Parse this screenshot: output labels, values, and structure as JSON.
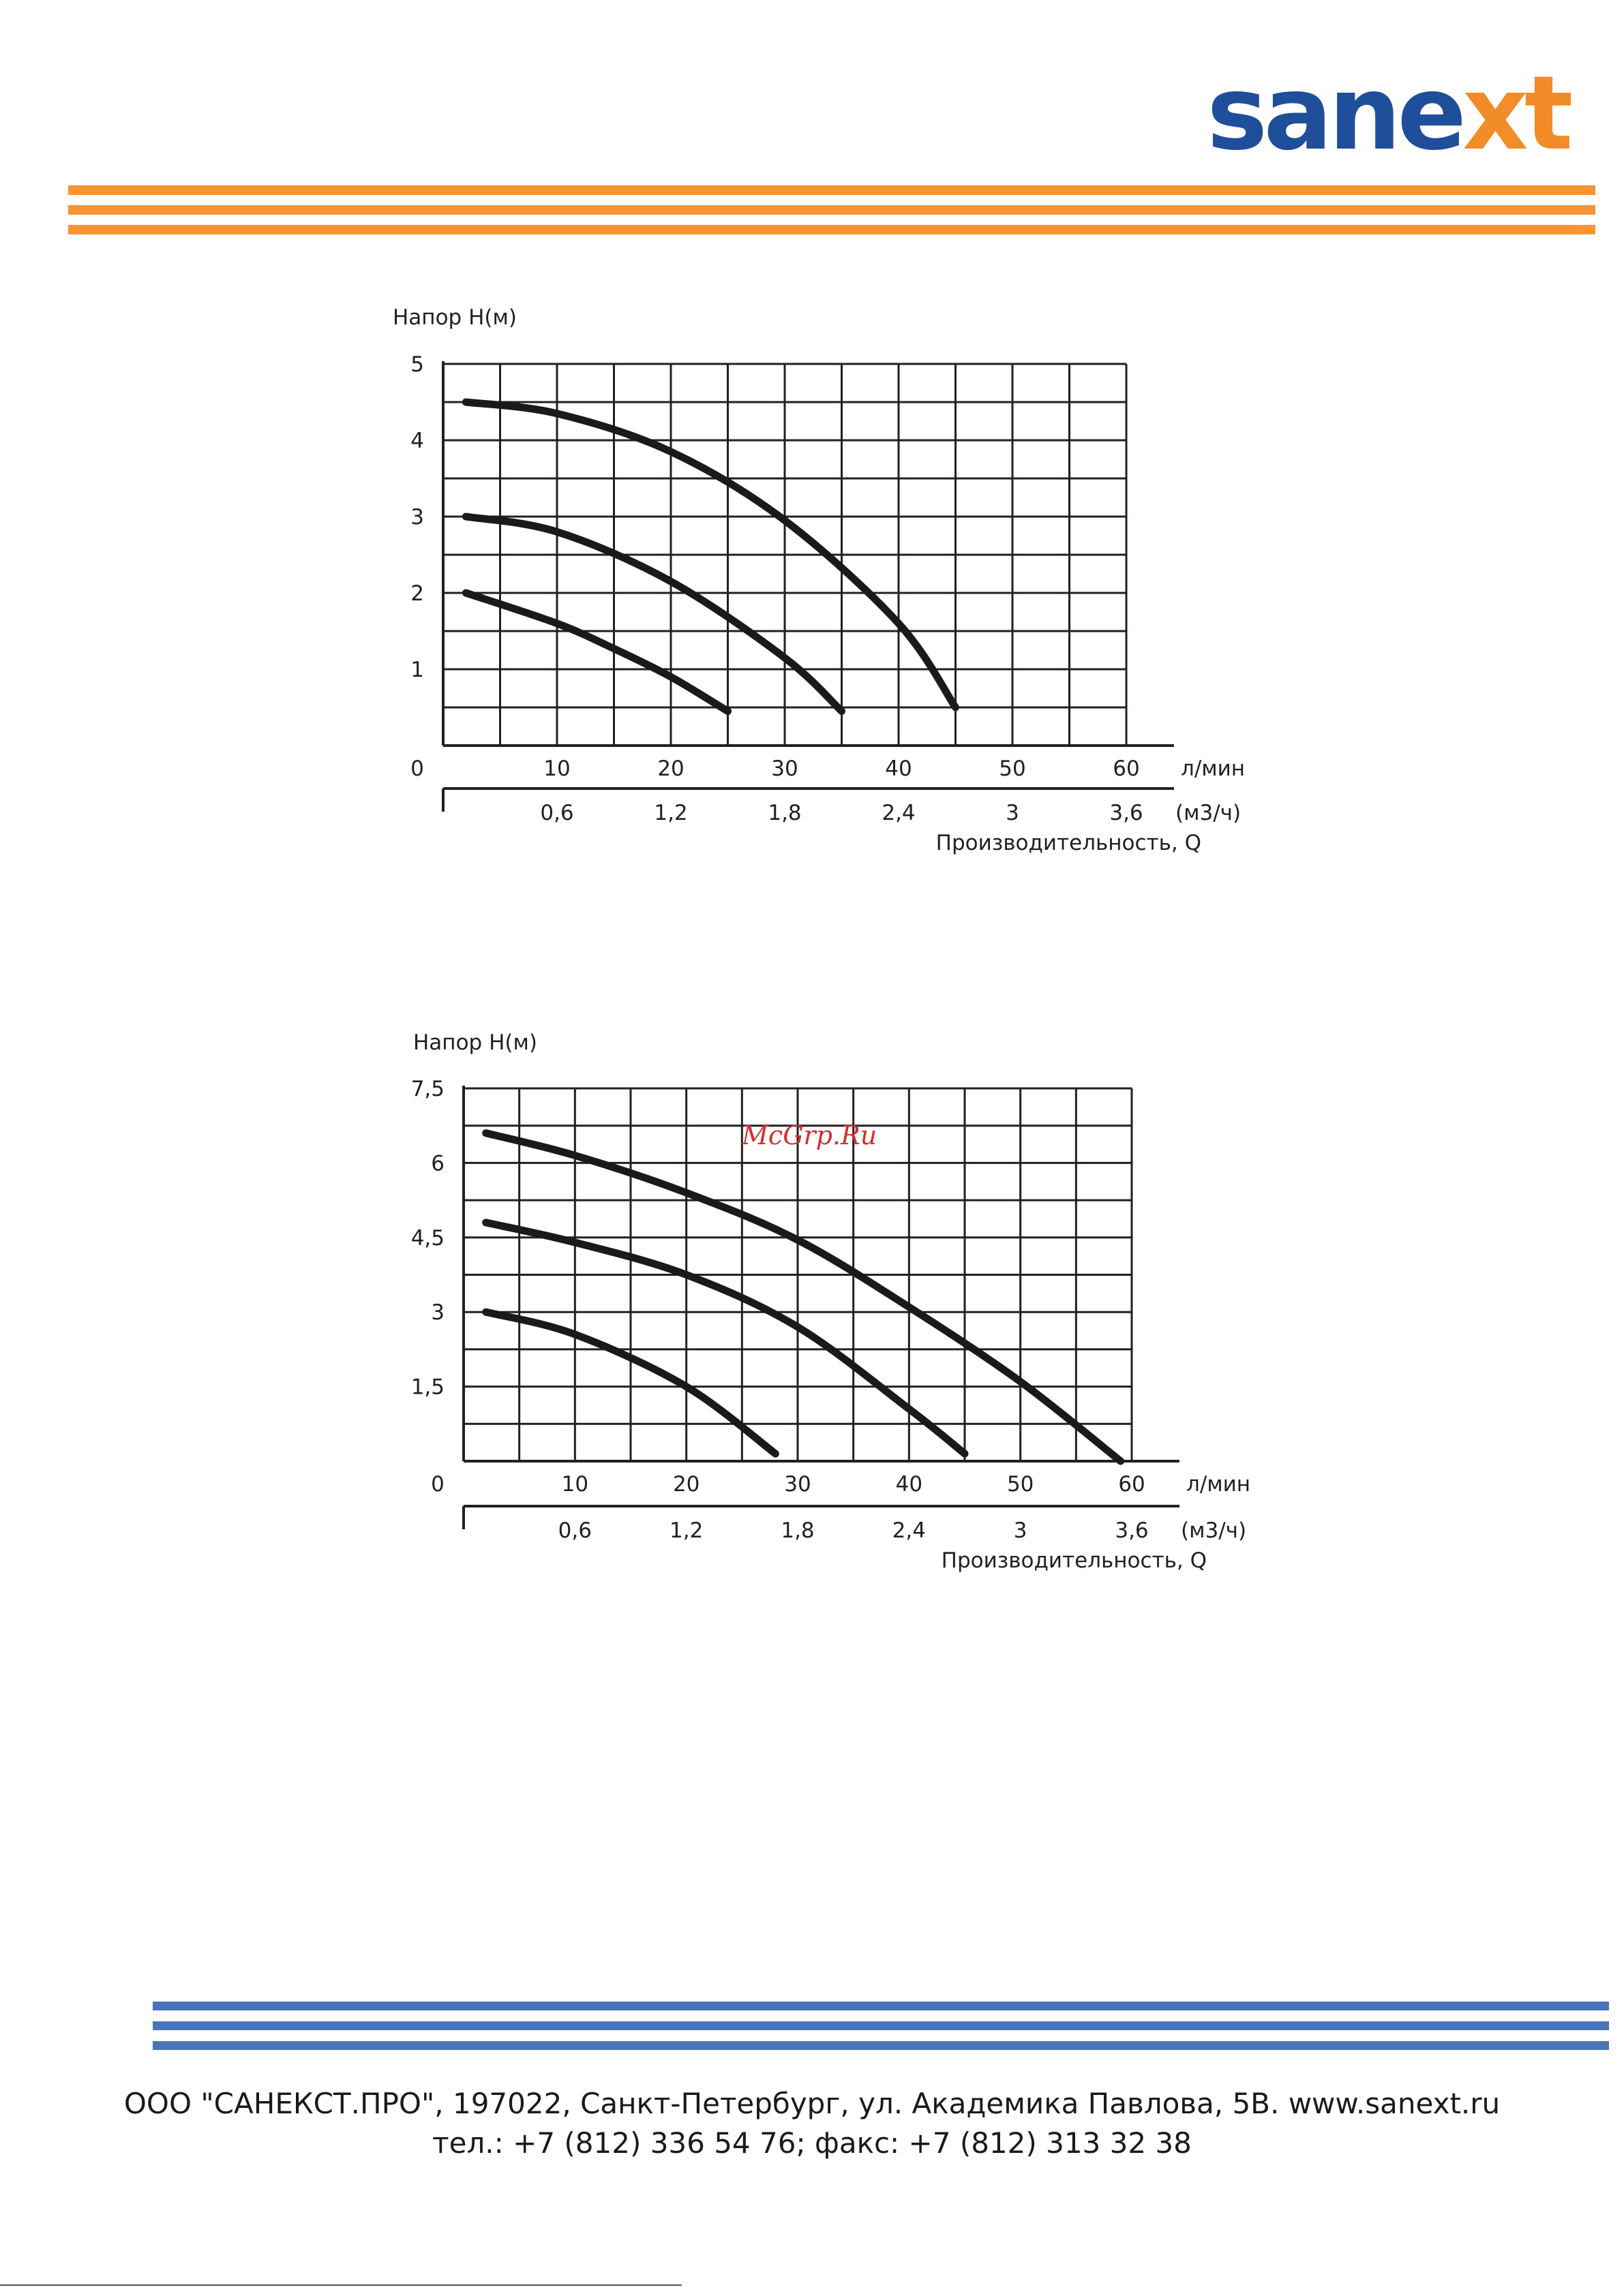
{
  "header": {
    "logo_text_main": "sane",
    "logo_text_accent": "xt",
    "colors": {
      "logo_blue": "#1f4e9a",
      "logo_orange": "#f28c28",
      "top_stripes": "#f79433",
      "bottom_stripes": "#4a74ba"
    }
  },
  "watermark": "McGrp.Ru",
  "footer": {
    "line1": "ООО \"САНЕКСТ.ПРО\", 197022, Санкт-Петербург, ул. Академика Павлова, 5В. www.sanext.ru",
    "line2": "тел.: +7 (812) 336 54 76; факс: +7 (812) 313 32 38"
  },
  "chart_data": [
    {
      "type": "line",
      "ylabel": "Напор Н(м)",
      "xlabel": "Производительность, Q",
      "x_unit": "л/мин",
      "x2_unit": "(м3/ч)",
      "xlim": [
        0,
        60
      ],
      "ylim": [
        0,
        5
      ],
      "x_ticks": [
        0,
        10,
        20,
        30,
        40,
        50,
        60
      ],
      "x_tick_labels": [
        "0",
        "10",
        "20",
        "30",
        "40",
        "50",
        "60"
      ],
      "x2_ticks": [
        10,
        20,
        30,
        40,
        50,
        60
      ],
      "x2_tick_labels": [
        "0,6",
        "1,2",
        "1,8",
        "2,4",
        "3",
        "3,6"
      ],
      "y_ticks": [
        1,
        2,
        3,
        4,
        5
      ],
      "y_tick_labels": [
        "1",
        "2",
        "3",
        "4",
        "5"
      ],
      "grid": {
        "x_step": 5,
        "y_step": 0.5
      },
      "series": [
        {
          "x": [
            2,
            10,
            15,
            20,
            25
          ],
          "y": [
            2.0,
            1.6,
            1.27,
            0.9,
            0.45
          ]
        },
        {
          "x": [
            2,
            10,
            20,
            30,
            35
          ],
          "y": [
            3.0,
            2.8,
            2.15,
            1.15,
            0.45
          ]
        },
        {
          "x": [
            2,
            10,
            20,
            30,
            40,
            45
          ],
          "y": [
            4.5,
            4.35,
            3.85,
            2.95,
            1.6,
            0.5
          ]
        }
      ]
    },
    {
      "type": "line",
      "ylabel": "Напор Н(м)",
      "xlabel": "Производительность, Q",
      "x_unit": "л/мин",
      "x2_unit": "(м3/ч)",
      "xlim": [
        0,
        60
      ],
      "ylim": [
        0,
        7.5
      ],
      "x_ticks": [
        0,
        10,
        20,
        30,
        40,
        50,
        60
      ],
      "x_tick_labels": [
        "0",
        "10",
        "20",
        "30",
        "40",
        "50",
        "60"
      ],
      "x2_ticks": [
        10,
        20,
        30,
        40,
        50,
        60
      ],
      "x2_tick_labels": [
        "0,6",
        "1,2",
        "1,8",
        "2,4",
        "3",
        "3,6"
      ],
      "y_ticks": [
        1.5,
        3,
        4.5,
        6,
        7.5
      ],
      "y_tick_labels": [
        "1,5",
        "3",
        "4,5",
        "6",
        "7,5"
      ],
      "grid": {
        "x_step": 5,
        "y_step": 0.75
      },
      "series": [
        {
          "x": [
            2,
            10,
            20,
            28
          ],
          "y": [
            3.0,
            2.55,
            1.5,
            0.15
          ]
        },
        {
          "x": [
            2,
            10,
            20,
            30,
            40,
            45
          ],
          "y": [
            4.8,
            4.4,
            3.75,
            2.7,
            1.05,
            0.15
          ]
        },
        {
          "x": [
            2,
            10,
            20,
            30,
            40,
            50,
            59
          ],
          "y": [
            6.6,
            6.15,
            5.4,
            4.45,
            3.1,
            1.6,
            0.0
          ]
        }
      ]
    }
  ]
}
